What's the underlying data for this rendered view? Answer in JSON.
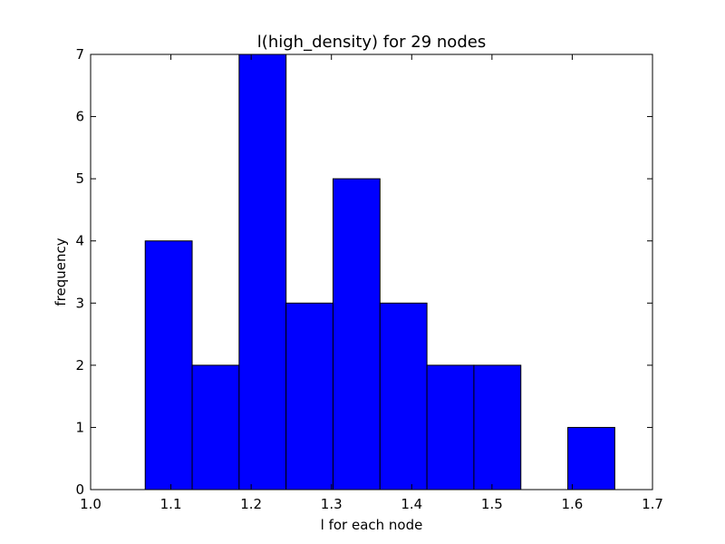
{
  "chart_data": {
    "type": "bar",
    "title": "l(high_density) for 29 nodes",
    "xlabel": "l for each node",
    "ylabel": "frequency",
    "xlim": [
      1.0,
      1.7
    ],
    "ylim": [
      0,
      7
    ],
    "xticks": [
      "1.0",
      "1.1",
      "1.2",
      "1.3",
      "1.4",
      "1.5",
      "1.6",
      "1.7"
    ],
    "yticks": [
      "0",
      "1",
      "2",
      "3",
      "4",
      "5",
      "6",
      "7"
    ],
    "bin_edges": [
      1.068,
      1.1265,
      1.185,
      1.2435,
      1.302,
      1.3605,
      1.419,
      1.4775,
      1.536,
      1.5945,
      1.653
    ],
    "values": [
      4,
      2,
      7,
      3,
      5,
      3,
      2,
      2,
      0,
      1
    ],
    "bar_color": "#0000ff",
    "edge_color": "#000000",
    "grid": false
  }
}
